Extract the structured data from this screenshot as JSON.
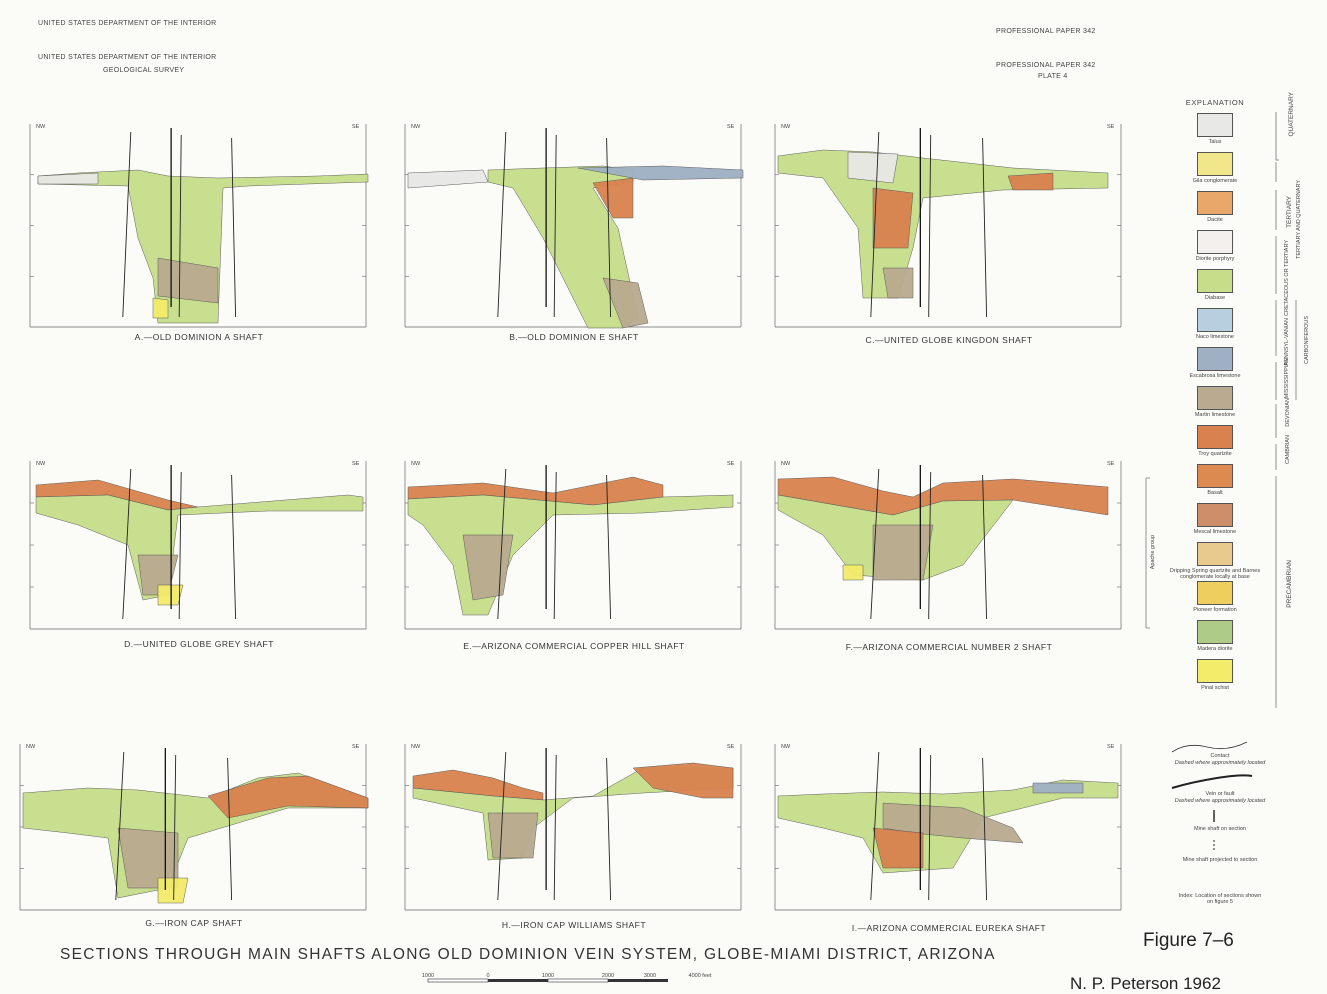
{
  "header": {
    "agency_top": "UNITED STATES DEPARTMENT OF THE INTERIOR",
    "agency": "UNITED STATES DEPARTMENT OF THE INTERIOR",
    "survey": "GEOLOGICAL SURVEY",
    "paper_top": "PROFESSIONAL PAPER 342",
    "paper": "PROFESSIONAL PAPER 342",
    "plate": "PLATE 4"
  },
  "sections": [
    {
      "id": "A",
      "caption": "A.—OLD DOMINION A SHAFT"
    },
    {
      "id": "B",
      "caption": "B.—OLD DOMINION E SHAFT"
    },
    {
      "id": "C",
      "caption": "C.—UNITED GLOBE KINGDON SHAFT"
    },
    {
      "id": "D",
      "caption": "D.—UNITED GLOBE GREY SHAFT"
    },
    {
      "id": "E",
      "caption": "E.—ARIZONA COMMERCIAL COPPER HILL SHAFT"
    },
    {
      "id": "F",
      "caption": "F.—ARIZONA COMMERCIAL NUMBER 2 SHAFT"
    },
    {
      "id": "G",
      "caption": "G.—IRON CAP SHAFT"
    },
    {
      "id": "H",
      "caption": "H.—IRON CAP WILLIAMS SHAFT"
    },
    {
      "id": "I",
      "caption": "I.—ARIZONA COMMERCIAL EUREKA SHAFT"
    }
  ],
  "direction": {
    "left": "NW",
    "right": "SE"
  },
  "explanation": {
    "title": "EXPLANATION",
    "units": [
      {
        "label": "Talus",
        "color": "#e8e8e6"
      },
      {
        "label": "Gila conglomerate",
        "color": "#f2e68a"
      },
      {
        "label": "Dacite",
        "color": "#e9a86a"
      },
      {
        "label": "Diorite porphyry",
        "color": "#f4f0ee"
      },
      {
        "label": "Diabase",
        "color": "#c6de8a"
      },
      {
        "label": "Naco limestone",
        "color": "#b8cfe0"
      },
      {
        "label": "Escabrosa limestone",
        "color": "#9fb0c4"
      },
      {
        "label": "Martin limestone",
        "color": "#b9aa90"
      },
      {
        "label": "Troy quartzite",
        "color": "#d9824e"
      },
      {
        "label": "Basalt",
        "color": "#dc8a50"
      },
      {
        "label": "Mescal limestone",
        "color": "#cf8e6a"
      },
      {
        "label": "Dripping Spring quartzite and Barnes conglomerate locally at base",
        "color": "#e8c98e"
      },
      {
        "label": "Pioneer formation",
        "color": "#eece5c"
      },
      {
        "label": "Madera diorite",
        "color": "#aecb88"
      },
      {
        "label": "Pinal schist",
        "color": "#f3ec6a"
      }
    ],
    "ages": [
      "QUATERNARY",
      "TERTIARY AND QUATERNARY",
      "TERTIARY",
      "CRETACEOUS OR TERTIARY",
      "PENNSYL-VANIAN",
      "MISSISSIPPIAN",
      "CARBONIFEROUS",
      "DEVONIAN",
      "CAMBRIAN",
      "PRECAMBRIAN"
    ],
    "apache_group": "Apache group",
    "symbols": {
      "contact": "Contact",
      "contact_note": "Dashed where approximately located",
      "fault": "Vein or fault",
      "fault_note": "Dashed where approximately located",
      "shaft_on": "Mine shaft on section",
      "shaft_projected": "Mine shaft projected to section",
      "index_note": "Index: Location of sections shown on figure 5"
    }
  },
  "title": "SECTIONS THROUGH MAIN SHAFTS ALONG OLD DOMINION VEIN SYSTEM, GLOBE-MIAMI DISTRICT, ARIZONA",
  "figure_label": "Figure 7–6",
  "author": "N. P. Peterson 1962",
  "scale": {
    "ticks": [
      "1000",
      "0",
      "1000",
      "2000",
      "3000",
      "4000 feet"
    ]
  }
}
